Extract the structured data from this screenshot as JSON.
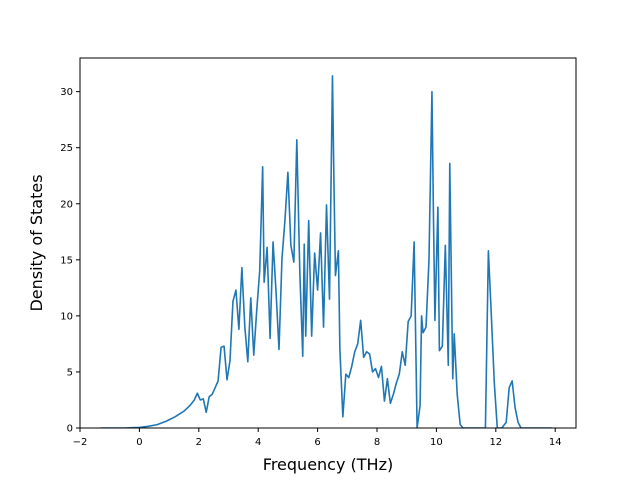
{
  "chart_data": {
    "type": "line",
    "title": "",
    "xlabel": "Frequency (THz)",
    "ylabel": "Density of States",
    "xlim": [
      -2.0,
      14.7
    ],
    "ylim": [
      0,
      33
    ],
    "xticks": [
      -2,
      0,
      2,
      4,
      6,
      8,
      10,
      12,
      14
    ],
    "yticks": [
      0,
      5,
      10,
      15,
      20,
      25,
      30
    ],
    "grid": false,
    "legend": "none",
    "line_color": "#1f77b4",
    "series": [
      {
        "x": [
          -1.3,
          -0.5,
          0.0,
          0.3,
          0.6,
          0.9,
          1.2,
          1.5,
          1.7,
          1.85,
          1.95,
          2.05,
          2.15,
          2.25,
          2.35,
          2.45,
          2.55,
          2.65,
          2.75,
          2.85,
          2.95,
          3.05,
          3.15,
          3.25,
          3.35,
          3.45,
          3.55,
          3.65,
          3.75,
          3.85,
          3.95,
          4.05,
          4.15,
          4.2,
          4.3,
          4.4,
          4.5,
          4.6,
          4.7,
          4.8,
          4.9,
          5.0,
          5.1,
          5.2,
          5.3,
          5.4,
          5.5,
          5.55,
          5.6,
          5.7,
          5.8,
          5.9,
          6.0,
          6.1,
          6.2,
          6.3,
          6.4,
          6.5,
          6.55,
          6.6,
          6.7,
          6.75,
          6.85,
          6.95,
          7.05,
          7.15,
          7.25,
          7.35,
          7.45,
          7.55,
          7.65,
          7.75,
          7.85,
          7.95,
          8.05,
          8.15,
          8.25,
          8.35,
          8.45,
          8.55,
          8.65,
          8.75,
          8.85,
          8.95,
          9.05,
          9.15,
          9.25,
          9.35,
          9.45,
          9.5,
          9.55,
          9.65,
          9.75,
          9.85,
          9.9,
          9.95,
          10.05,
          10.1,
          10.2,
          10.3,
          10.4,
          10.45,
          10.55,
          10.6,
          10.7,
          10.8,
          10.9,
          11.0,
          11.2,
          11.5,
          11.65,
          11.75,
          11.85,
          11.95,
          12.05,
          12.2,
          12.35,
          12.45,
          12.55,
          12.65,
          12.75,
          12.85,
          13.0,
          13.5,
          13.9
        ],
        "y": [
          0,
          0,
          0.05,
          0.15,
          0.3,
          0.6,
          1.0,
          1.5,
          2.0,
          2.5,
          3.1,
          2.5,
          2.6,
          1.4,
          2.8,
          3.0,
          3.6,
          4.2,
          7.2,
          7.3,
          4.3,
          6.0,
          11.3,
          12.3,
          8.8,
          14.3,
          9.0,
          5.9,
          11.6,
          6.5,
          10.5,
          14.0,
          23.3,
          13.0,
          16.1,
          8.0,
          16.6,
          12.2,
          7.0,
          15.1,
          18.5,
          22.8,
          16.3,
          14.8,
          25.7,
          14.0,
          6.4,
          16.4,
          8.2,
          18.5,
          8.2,
          15.6,
          12.3,
          17.4,
          9.0,
          19.9,
          11.5,
          31.4,
          22.0,
          13.6,
          15.8,
          7.0,
          1.0,
          4.8,
          4.5,
          5.5,
          6.8,
          7.5,
          9.6,
          6.3,
          6.8,
          6.6,
          5.0,
          5.3,
          4.5,
          5.5,
          2.4,
          4.4,
          2.2,
          3.0,
          4.0,
          4.8,
          6.8,
          5.6,
          9.5,
          10.0,
          16.6,
          0.0,
          2.0,
          10.0,
          8.5,
          9.0,
          15.0,
          30.0,
          19.0,
          9.6,
          19.7,
          6.9,
          7.3,
          16.3,
          5.6,
          23.6,
          4.4,
          8.4,
          3.0,
          0.3,
          0.0,
          0.0,
          0.0,
          0.0,
          0.0,
          15.8,
          10.0,
          4.0,
          0.0,
          0.0,
          0.5,
          3.6,
          4.2,
          1.8,
          0.5,
          0.0,
          0.0,
          0.0,
          0.0
        ]
      }
    ]
  }
}
